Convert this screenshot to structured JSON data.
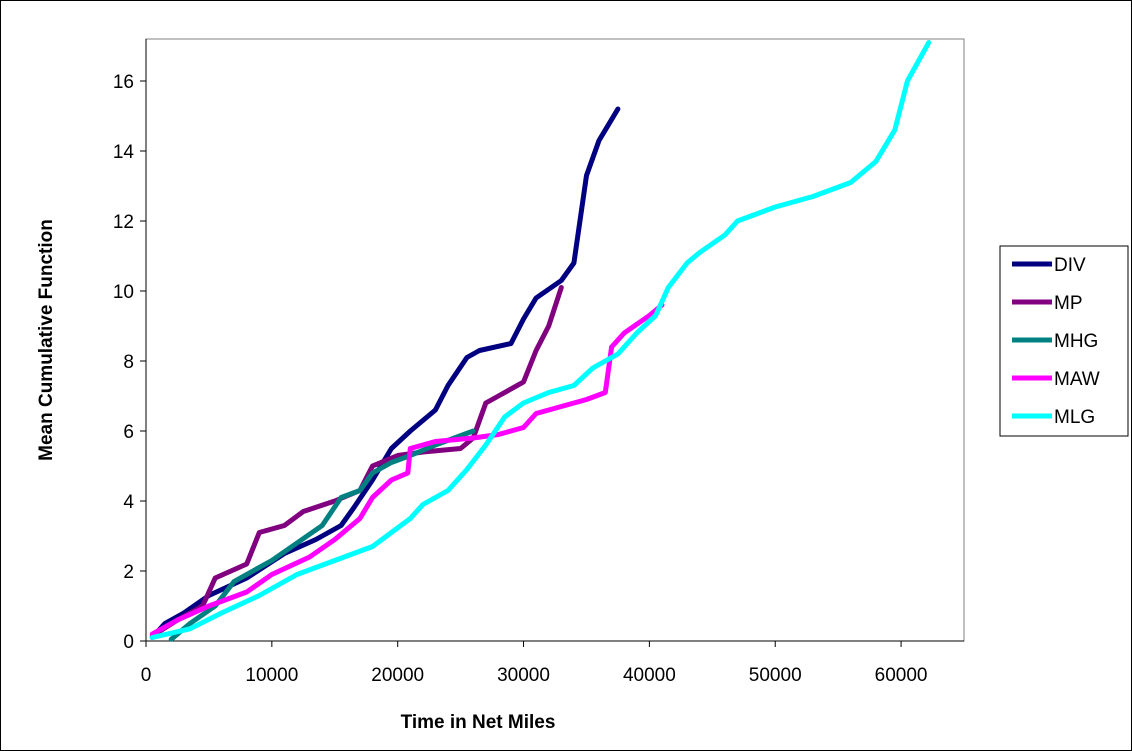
{
  "chart_data": {
    "type": "line",
    "title": "",
    "xlabel": "Time in Net Miles",
    "ylabel": "Mean Cumulative Function",
    "xlim": [
      0,
      65000
    ],
    "ylim": [
      0,
      17.2
    ],
    "xticks": [
      0,
      10000,
      20000,
      30000,
      40000,
      50000,
      60000
    ],
    "xtick_labels": [
      "0",
      "10000",
      "20000",
      "30000",
      "40000",
      "50000",
      "60000"
    ],
    "yticks": [
      0,
      2,
      4,
      6,
      8,
      10,
      12,
      14,
      16
    ],
    "ytick_labels": [
      "0",
      "2",
      "4",
      "6",
      "8",
      "10",
      "12",
      "14",
      "16"
    ],
    "grid": false,
    "legend_position": "right",
    "series": [
      {
        "name": "DIV",
        "color": "#000080",
        "points": [
          [
            500,
            0.1
          ],
          [
            1500,
            0.5
          ],
          [
            3000,
            0.8
          ],
          [
            5000,
            1.3
          ],
          [
            8000,
            1.8
          ],
          [
            11000,
            2.5
          ],
          [
            13500,
            2.9
          ],
          [
            15500,
            3.3
          ],
          [
            16500,
            3.8
          ],
          [
            18000,
            4.6
          ],
          [
            19500,
            5.5
          ],
          [
            21000,
            6.0
          ],
          [
            23000,
            6.6
          ],
          [
            24000,
            7.3
          ],
          [
            25500,
            8.1
          ],
          [
            26500,
            8.3
          ],
          [
            29000,
            8.5
          ],
          [
            30000,
            9.2
          ],
          [
            31000,
            9.8
          ],
          [
            33000,
            10.3
          ],
          [
            34000,
            10.8
          ],
          [
            35000,
            13.3
          ],
          [
            36000,
            14.3
          ],
          [
            37500,
            15.2
          ]
        ]
      },
      {
        "name": "MP",
        "color": "#800080",
        "points": [
          [
            500,
            0.15
          ],
          [
            2500,
            0.6
          ],
          [
            4500,
            1.0
          ],
          [
            5500,
            1.8
          ],
          [
            8000,
            2.2
          ],
          [
            9000,
            3.1
          ],
          [
            11000,
            3.3
          ],
          [
            12500,
            3.7
          ],
          [
            15000,
            4.0
          ],
          [
            17000,
            4.3
          ],
          [
            18000,
            5.0
          ],
          [
            20000,
            5.3
          ],
          [
            22000,
            5.4
          ],
          [
            25000,
            5.5
          ],
          [
            26000,
            5.8
          ],
          [
            27000,
            6.8
          ],
          [
            28000,
            7.0
          ],
          [
            30000,
            7.4
          ],
          [
            31000,
            8.3
          ],
          [
            32000,
            9.0
          ],
          [
            33000,
            10.1
          ]
        ]
      },
      {
        "name": "MHG",
        "color": "#008080",
        "points": [
          [
            2000,
            0.05
          ],
          [
            3500,
            0.5
          ],
          [
            5500,
            1.0
          ],
          [
            7000,
            1.7
          ],
          [
            10000,
            2.3
          ],
          [
            12000,
            2.8
          ],
          [
            14000,
            3.3
          ],
          [
            15500,
            4.1
          ],
          [
            17000,
            4.3
          ],
          [
            18000,
            4.8
          ],
          [
            19500,
            5.1
          ],
          [
            21000,
            5.3
          ],
          [
            23000,
            5.6
          ],
          [
            26000,
            6.0
          ]
        ]
      },
      {
        "name": "MAW",
        "color": "#FF00FF",
        "points": [
          [
            500,
            0.2
          ],
          [
            2500,
            0.6
          ],
          [
            5000,
            1.0
          ],
          [
            8000,
            1.4
          ],
          [
            10000,
            1.9
          ],
          [
            13000,
            2.4
          ],
          [
            15000,
            2.9
          ],
          [
            17000,
            3.5
          ],
          [
            18000,
            4.1
          ],
          [
            19500,
            4.6
          ],
          [
            20800,
            4.8
          ],
          [
            21000,
            5.5
          ],
          [
            23000,
            5.7
          ],
          [
            26000,
            5.8
          ],
          [
            28000,
            5.9
          ],
          [
            30000,
            6.1
          ],
          [
            31000,
            6.5
          ],
          [
            33000,
            6.7
          ],
          [
            35000,
            6.9
          ],
          [
            36500,
            7.1
          ],
          [
            37000,
            8.4
          ],
          [
            38000,
            8.8
          ],
          [
            40000,
            9.3
          ],
          [
            41000,
            9.6
          ]
        ]
      },
      {
        "name": "MLG",
        "color": "#00FFFF",
        "points": [
          [
            500,
            0.1
          ],
          [
            3500,
            0.35
          ],
          [
            6000,
            0.8
          ],
          [
            9000,
            1.3
          ],
          [
            12000,
            1.9
          ],
          [
            15000,
            2.3
          ],
          [
            18000,
            2.7
          ],
          [
            19500,
            3.1
          ],
          [
            21000,
            3.5
          ],
          [
            22000,
            3.9
          ],
          [
            24000,
            4.3
          ],
          [
            25500,
            4.9
          ],
          [
            27000,
            5.6
          ],
          [
            28500,
            6.4
          ],
          [
            30000,
            6.8
          ],
          [
            32000,
            7.1
          ],
          [
            34000,
            7.3
          ],
          [
            35500,
            7.8
          ],
          [
            37500,
            8.2
          ],
          [
            39000,
            8.8
          ],
          [
            40500,
            9.3
          ],
          [
            41500,
            10.1
          ],
          [
            43000,
            10.8
          ],
          [
            44000,
            11.1
          ],
          [
            46000,
            11.6
          ],
          [
            47000,
            12.0
          ],
          [
            50000,
            12.4
          ],
          [
            53000,
            12.7
          ],
          [
            56000,
            13.1
          ],
          [
            58000,
            13.7
          ],
          [
            59500,
            14.6
          ],
          [
            60500,
            16.0
          ],
          [
            62200,
            17.1
          ]
        ]
      }
    ]
  }
}
